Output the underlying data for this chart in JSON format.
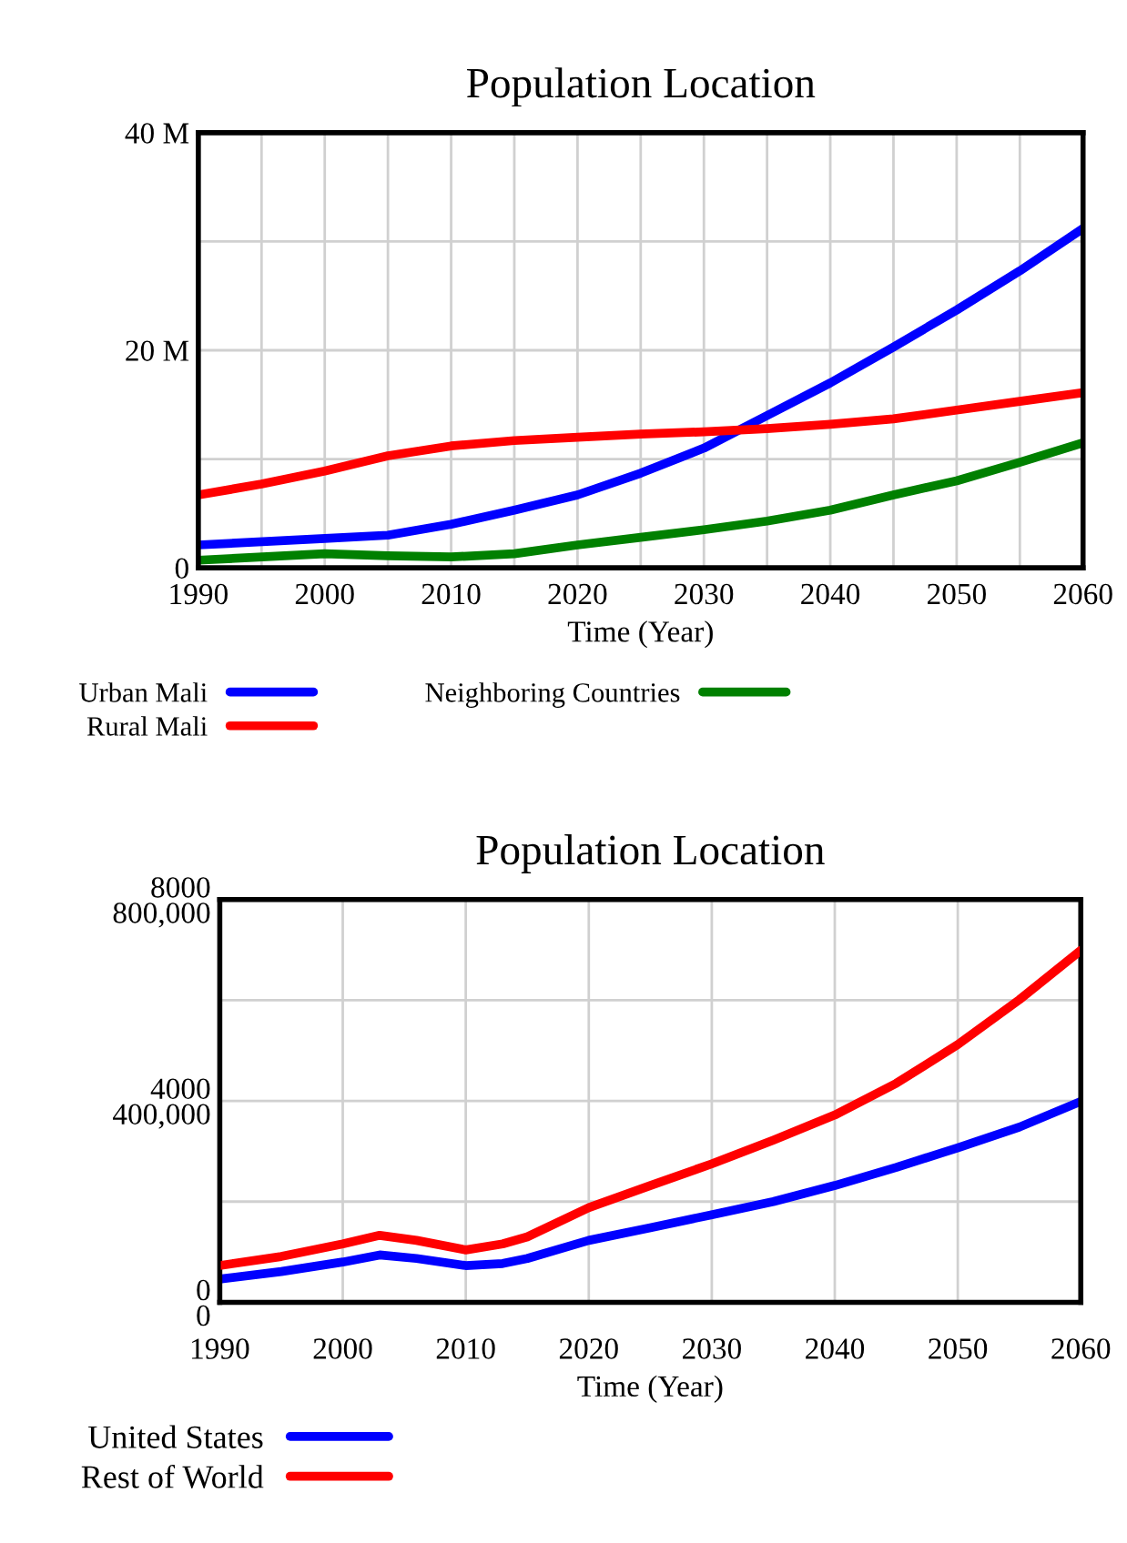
{
  "chart_data": [
    {
      "type": "line",
      "title": "Population Location",
      "xlabel": "Time (Year)",
      "xlim": [
        1990,
        2060
      ],
      "xticks": [
        1990,
        2000,
        2010,
        2020,
        2030,
        2040,
        2050,
        2060
      ],
      "ylim": [
        0,
        40
      ],
      "yticks": [
        {
          "value": 0,
          "label": "0"
        },
        {
          "value": 10,
          "label": null
        },
        {
          "value": 20,
          "label": "20 M"
        },
        {
          "value": 30,
          "label": null
        },
        {
          "value": 40,
          "label": "40 M"
        }
      ],
      "grid": true,
      "legend": "bottom",
      "line_style": "solid",
      "series": [
        {
          "name": "Urban Mali",
          "color": "#0000ff",
          "x": [
            1990,
            2000,
            2005,
            2010,
            2015,
            2020,
            2025,
            2030,
            2035,
            2040,
            2045,
            2050,
            2055,
            2060
          ],
          "values": [
            2.1,
            2.7,
            3.0,
            4.0,
            5.3,
            6.7,
            8.7,
            11,
            14,
            17,
            20.3,
            23.7,
            27.3,
            31.2
          ]
        },
        {
          "name": "Rural Mali",
          "color": "#ff0000",
          "x": [
            1990,
            1995,
            2000,
            2005,
            2010,
            2015,
            2020,
            2025,
            2030,
            2035,
            2040,
            2045,
            2050,
            2055,
            2060
          ],
          "values": [
            6.7,
            7.7,
            8.9,
            10.3,
            11.2,
            11.7,
            12,
            12.3,
            12.5,
            12.8,
            13.2,
            13.7,
            14.5,
            15.3,
            16.1
          ]
        },
        {
          "name": "Neighboring Countries",
          "color": "#008000",
          "x": [
            1990,
            2000,
            2005,
            2010,
            2015,
            2020,
            2025,
            2030,
            2035,
            2040,
            2045,
            2050,
            2055,
            2060
          ],
          "values": [
            0.7,
            1.3,
            1.1,
            1.0,
            1.3,
            2.1,
            2.8,
            3.5,
            4.3,
            5.3,
            6.7,
            8.0,
            9.7,
            11.5
          ]
        }
      ]
    },
    {
      "type": "line",
      "title": "Population Location",
      "xlabel": "Time (Year)",
      "xlim": [
        1990,
        2060
      ],
      "xticks": [
        1990,
        2000,
        2010,
        2020,
        2030,
        2040,
        2050,
        2060
      ],
      "ylim": [
        0,
        8000
      ],
      "yticks": [
        0,
        {
          "value": 2000,
          "label": null
        },
        4000,
        {
          "value": 6000,
          "label": null
        },
        8000
      ],
      "y2lim": [
        0,
        800000
      ],
      "y2ticks": [
        {
          "value": 0,
          "label": "0"
        },
        {
          "value": 400000,
          "label": "400,000"
        },
        {
          "value": 800000,
          "label": "800,000"
        }
      ],
      "grid": true,
      "legend": "bottom",
      "line_style": "solid",
      "series": [
        {
          "name": "United States",
          "color": "#0000ff",
          "x": [
            1990,
            1995,
            2000,
            2003,
            2006,
            2010,
            2013,
            2015,
            2020,
            2025,
            2030,
            2035,
            2040,
            2045,
            2050,
            2055,
            2060
          ],
          "values": [
            460,
            610,
            800,
            940,
            870,
            730,
            770,
            870,
            1230,
            1480,
            1740,
            2000,
            2320,
            2680,
            3070,
            3480,
            3990
          ]
        },
        {
          "name": "Rest of World",
          "color": "#ff0000",
          "axis": "y2",
          "x": [
            1990,
            1995,
            2000,
            2003,
            2006,
            2010,
            2013,
            2015,
            2020,
            2025,
            2030,
            2035,
            2040,
            2045,
            2050,
            2055,
            2060
          ],
          "values": [
            73000,
            91000,
            116000,
            133000,
            123000,
            104000,
            116000,
            130000,
            188000,
            232000,
            275000,
            322000,
            372000,
            435000,
            512000,
            601000,
            699000
          ]
        }
      ]
    }
  ]
}
